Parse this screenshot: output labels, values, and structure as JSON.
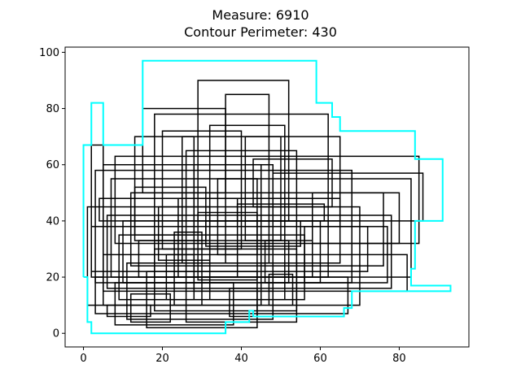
{
  "chart_data": {
    "type": "rectangle-union-plot",
    "title_lines": [
      "Measure: 6910",
      "Contour Perimeter: 430"
    ],
    "xlim": [
      -4.65,
      97.65
    ],
    "ylim": [
      -4.85,
      101.85
    ],
    "x_ticks": [
      0,
      20,
      40,
      60,
      80
    ],
    "y_ticks": [
      0,
      20,
      40,
      60,
      80,
      100
    ],
    "grid": false,
    "rectangle_color": "#000000",
    "contour_color": "#00ffff",
    "rectangles": [
      [
        29,
        90,
        52,
        40
      ],
      [
        36,
        85,
        47,
        25
      ],
      [
        15,
        80,
        36,
        50
      ],
      [
        18,
        78,
        62,
        20
      ],
      [
        20,
        72,
        40,
        30
      ],
      [
        25,
        70,
        65,
        25
      ],
      [
        13,
        70,
        28,
        35
      ],
      [
        32,
        74,
        51,
        12
      ],
      [
        2,
        67,
        5,
        20
      ],
      [
        8,
        63,
        85,
        32
      ],
      [
        5,
        60,
        45,
        10
      ],
      [
        3,
        58,
        68,
        18
      ],
      [
        7,
        55,
        83,
        20
      ],
      [
        12,
        50,
        76,
        24
      ],
      [
        4,
        48,
        65,
        40
      ],
      [
        1,
        45,
        70,
        10
      ],
      [
        6,
        42,
        78,
        16
      ],
      [
        10,
        40,
        60,
        18
      ],
      [
        2,
        38,
        72,
        22
      ],
      [
        9,
        35,
        56,
        12
      ],
      [
        14,
        33,
        58,
        20
      ],
      [
        18,
        30,
        54,
        8
      ],
      [
        5,
        28,
        82,
        15
      ],
      [
        11,
        25,
        48,
        5
      ],
      [
        16,
        22,
        44,
        2
      ],
      [
        8,
        18,
        38,
        3
      ],
      [
        3,
        20,
        67,
        7
      ],
      [
        26,
        65,
        54,
        4
      ],
      [
        28,
        60,
        48,
        15
      ],
      [
        34,
        55,
        44,
        28
      ],
      [
        19,
        45,
        32,
        26
      ],
      [
        41,
        70,
        50,
        33
      ],
      [
        23,
        36,
        30,
        10
      ],
      [
        31,
        40,
        55,
        31
      ],
      [
        46,
        33,
        52,
        18
      ],
      [
        58,
        50,
        80,
        32
      ],
      [
        43,
        62,
        63,
        45
      ],
      [
        56,
        38,
        77,
        18
      ],
      [
        13,
        52,
        31,
        33
      ],
      [
        24,
        48,
        39,
        20
      ],
      [
        48,
        57,
        86,
        40
      ],
      [
        21,
        28,
        28,
        12
      ],
      [
        37,
        16,
        44,
        6
      ],
      [
        12,
        14,
        22,
        4
      ],
      [
        6,
        10,
        17,
        6
      ],
      [
        47,
        21,
        53,
        10
      ],
      [
        39,
        46,
        61,
        40
      ],
      [
        29,
        43,
        44,
        19
      ]
    ],
    "contour": [
      [
        0,
        20
      ],
      [
        0,
        67
      ],
      [
        2,
        67
      ],
      [
        2,
        82
      ],
      [
        5,
        82
      ],
      [
        5,
        67
      ],
      [
        15,
        67
      ],
      [
        15,
        97
      ],
      [
        59,
        97
      ],
      [
        59,
        82
      ],
      [
        63,
        82
      ],
      [
        63,
        77
      ],
      [
        65,
        77
      ],
      [
        65,
        72
      ],
      [
        84,
        72
      ],
      [
        84,
        62
      ],
      [
        91,
        62
      ],
      [
        91,
        40
      ],
      [
        84,
        40
      ],
      [
        84,
        23
      ],
      [
        83,
        23
      ],
      [
        83,
        17
      ],
      [
        93,
        17
      ],
      [
        93,
        15
      ],
      [
        68,
        15
      ],
      [
        68,
        9
      ],
      [
        66,
        9
      ],
      [
        66,
        6
      ],
      [
        43,
        6
      ],
      [
        43,
        8
      ],
      [
        42,
        8
      ],
      [
        42,
        4
      ],
      [
        36,
        4
      ],
      [
        36,
        0
      ],
      [
        2,
        0
      ],
      [
        2,
        4
      ],
      [
        1,
        4
      ],
      [
        1,
        20
      ],
      [
        0,
        20
      ]
    ]
  }
}
